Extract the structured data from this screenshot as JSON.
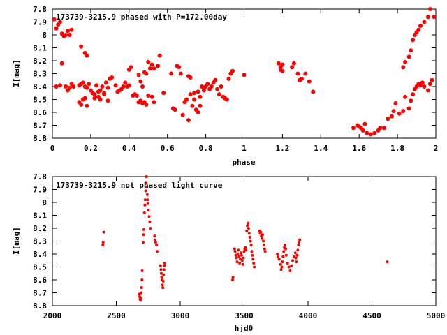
{
  "chart_data": [
    {
      "type": "scatter",
      "title": "173739-3215.9 phased with P=172.00day",
      "xlabel": "phase",
      "ylabel": "I[mag]",
      "xlim": [
        0,
        2
      ],
      "ylim": [
        7.8,
        8.8
      ],
      "y_inverted": true,
      "xticks": [
        "0",
        "0.2",
        "0.4",
        "0.6",
        "0.8",
        "1",
        "1.2",
        "1.4",
        "1.6",
        "1.8",
        "2"
      ],
      "yticks": [
        "7.8",
        "7.9",
        "8",
        "8.1",
        "8.2",
        "8.3",
        "8.4",
        "8.5",
        "8.6",
        "8.7",
        "8.8"
      ],
      "marker_color": "#ff0000",
      "grid": false,
      "points": [
        [
          0.01,
          7.88
        ],
        [
          0.02,
          7.95
        ],
        [
          0.03,
          7.92
        ],
        [
          0.04,
          7.9
        ],
        [
          0.05,
          7.99
        ],
        [
          0.06,
          8.01
        ],
        [
          0.07,
          8.0
        ],
        [
          0.08,
          7.97
        ],
        [
          0.09,
          8.0
        ],
        [
          0.1,
          7.96
        ],
        [
          0.02,
          8.4
        ],
        [
          0.04,
          8.39
        ],
        [
          0.05,
          8.22
        ],
        [
          0.07,
          8.4
        ],
        [
          0.08,
          8.43
        ],
        [
          0.09,
          8.41
        ],
        [
          0.1,
          8.38
        ],
        [
          0.11,
          8.4
        ],
        [
          0.14,
          8.39
        ],
        [
          0.15,
          8.38
        ],
        [
          0.16,
          8.37
        ],
        [
          0.17,
          8.4
        ],
        [
          0.18,
          8.41
        ],
        [
          0.19,
          8.38
        ],
        [
          0.15,
          8.09
        ],
        [
          0.17,
          8.14
        ],
        [
          0.18,
          8.16
        ],
        [
          0.14,
          8.52
        ],
        [
          0.15,
          8.54
        ],
        [
          0.16,
          8.5
        ],
        [
          0.17,
          8.49
        ],
        [
          0.18,
          8.55
        ],
        [
          0.2,
          8.43
        ],
        [
          0.21,
          8.45
        ],
        [
          0.22,
          8.46
        ],
        [
          0.23,
          8.39
        ],
        [
          0.24,
          8.44
        ],
        [
          0.25,
          8.43
        ],
        [
          0.26,
          8.4
        ],
        [
          0.27,
          8.45
        ],
        [
          0.28,
          8.37
        ],
        [
          0.29,
          8.41
        ],
        [
          0.3,
          8.34
        ],
        [
          0.31,
          8.33
        ],
        [
          0.22,
          8.49
        ],
        [
          0.24,
          8.48
        ],
        [
          0.25,
          8.5
        ],
        [
          0.27,
          8.46
        ],
        [
          0.29,
          8.51
        ],
        [
          0.33,
          8.39
        ],
        [
          0.34,
          8.44
        ],
        [
          0.35,
          8.43
        ],
        [
          0.36,
          8.42
        ],
        [
          0.37,
          8.4
        ],
        [
          0.38,
          8.37
        ],
        [
          0.39,
          8.4
        ],
        [
          0.4,
          8.39
        ],
        [
          0.4,
          8.27
        ],
        [
          0.41,
          8.25
        ],
        [
          0.42,
          8.47
        ],
        [
          0.43,
          8.46
        ],
        [
          0.44,
          8.47
        ],
        [
          0.45,
          8.31
        ],
        [
          0.46,
          8.36
        ],
        [
          0.47,
          8.4
        ],
        [
          0.48,
          8.29
        ],
        [
          0.49,
          8.3
        ],
        [
          0.5,
          8.21
        ],
        [
          0.51,
          8.26
        ],
        [
          0.52,
          8.23
        ],
        [
          0.53,
          8.26
        ],
        [
          0.55,
          8.24
        ],
        [
          0.56,
          8.16
        ],
        [
          0.45,
          8.52
        ],
        [
          0.46,
          8.51
        ],
        [
          0.47,
          8.53
        ],
        [
          0.48,
          8.52
        ],
        [
          0.49,
          8.54
        ],
        [
          0.5,
          8.47
        ],
        [
          0.52,
          8.48
        ],
        [
          0.53,
          8.52
        ],
        [
          0.58,
          8.45
        ],
        [
          0.62,
          8.3
        ],
        [
          0.63,
          8.57
        ],
        [
          0.64,
          8.58
        ],
        [
          0.65,
          8.24
        ],
        [
          0.66,
          8.25
        ],
        [
          0.67,
          8.3
        ],
        [
          0.68,
          8.62
        ],
        [
          0.69,
          8.52
        ],
        [
          0.7,
          8.5
        ],
        [
          0.71,
          8.66
        ],
        [
          0.71,
          8.32
        ],
        [
          0.72,
          8.33
        ],
        [
          0.73,
          8.55
        ],
        [
          0.74,
          8.5
        ],
        [
          0.75,
          8.58
        ],
        [
          0.76,
          8.6
        ],
        [
          0.77,
          8.55
        ],
        [
          0.78,
          8.4
        ],
        [
          0.79,
          8.43
        ],
        [
          0.8,
          8.4
        ],
        [
          0.81,
          8.38
        ],
        [
          0.72,
          8.46
        ],
        [
          0.74,
          8.45
        ],
        [
          0.76,
          8.44
        ],
        [
          0.77,
          8.48
        ],
        [
          0.79,
          8.41
        ],
        [
          0.82,
          8.42
        ],
        [
          0.83,
          8.4
        ],
        [
          0.84,
          8.37
        ],
        [
          0.85,
          8.35
        ],
        [
          0.86,
          8.42
        ],
        [
          0.87,
          8.46
        ],
        [
          0.88,
          8.4
        ],
        [
          0.89,
          8.48
        ],
        [
          0.9,
          8.49
        ],
        [
          0.91,
          8.5
        ],
        [
          0.92,
          8.34
        ],
        [
          0.93,
          8.3
        ],
        [
          0.94,
          8.28
        ],
        [
          1.0,
          8.31
        ],
        [
          1.18,
          8.22
        ],
        [
          1.19,
          8.25
        ],
        [
          1.19,
          8.27
        ],
        [
          1.2,
          8.23
        ],
        [
          1.2,
          8.28
        ],
        [
          1.25,
          8.25
        ],
        [
          1.26,
          8.22
        ],
        [
          1.28,
          8.3
        ],
        [
          1.29,
          8.35
        ],
        [
          1.3,
          8.34
        ],
        [
          1.32,
          8.3
        ],
        [
          1.34,
          8.36
        ],
        [
          1.36,
          8.44
        ],
        [
          1.57,
          8.72
        ],
        [
          1.59,
          8.7
        ],
        [
          1.6,
          8.71
        ],
        [
          1.61,
          8.72
        ],
        [
          1.62,
          8.74
        ],
        [
          1.63,
          8.69
        ],
        [
          1.64,
          8.76
        ],
        [
          1.66,
          8.77
        ],
        [
          1.68,
          8.76
        ],
        [
          1.7,
          8.74
        ],
        [
          1.71,
          8.72
        ],
        [
          1.73,
          8.72
        ],
        [
          1.75,
          8.65
        ],
        [
          1.77,
          8.63
        ],
        [
          1.78,
          8.59
        ],
        [
          1.79,
          8.53
        ],
        [
          1.81,
          8.61
        ],
        [
          1.83,
          8.59
        ],
        [
          1.84,
          8.48
        ],
        [
          1.86,
          8.57
        ],
        [
          1.83,
          8.25
        ],
        [
          1.84,
          8.21
        ],
        [
          1.86,
          8.17
        ],
        [
          1.87,
          8.12
        ],
        [
          1.88,
          8.04
        ],
        [
          1.89,
          8.0
        ],
        [
          1.9,
          7.98
        ],
        [
          1.91,
          7.96
        ],
        [
          1.92,
          7.93
        ],
        [
          1.94,
          7.9
        ],
        [
          1.96,
          7.86
        ],
        [
          1.97,
          7.8
        ],
        [
          1.99,
          7.86
        ],
        [
          1.87,
          8.51
        ],
        [
          1.88,
          8.46
        ],
        [
          1.89,
          8.42
        ],
        [
          1.9,
          8.4
        ],
        [
          1.91,
          8.38
        ],
        [
          1.92,
          8.39
        ],
        [
          1.93,
          8.37
        ],
        [
          1.94,
          8.4
        ],
        [
          1.96,
          8.43
        ],
        [
          1.97,
          8.38
        ],
        [
          1.98,
          8.35
        ]
      ]
    },
    {
      "type": "scatter",
      "title": "173739-3215.9 not phased light curve",
      "xlabel": "hjd0",
      "ylabel": "I[mag]",
      "xlim": [
        2000,
        5000
      ],
      "ylim": [
        7.8,
        8.8
      ],
      "y_inverted": true,
      "xticks": [
        "2000",
        "2500",
        "3000",
        "3500",
        "4000",
        "4500",
        "5000"
      ],
      "yticks": [
        "7.8",
        "7.9",
        "8",
        "8.1",
        "8.2",
        "8.3",
        "8.4",
        "8.5",
        "8.6",
        "8.7",
        "8.8"
      ],
      "marker_color": "#ff0000",
      "grid": false,
      "points": [
        [
          2395,
          8.33
        ],
        [
          2397,
          8.31
        ],
        [
          2402,
          8.23
        ],
        [
          2680,
          8.71
        ],
        [
          2683,
          8.73
        ],
        [
          2686,
          8.75
        ],
        [
          2689,
          8.76
        ],
        [
          2692,
          8.74
        ],
        [
          2695,
          8.7
        ],
        [
          2698,
          8.66
        ],
        [
          2701,
          8.6
        ],
        [
          2703,
          8.53
        ],
        [
          2710,
          8.31
        ],
        [
          2713,
          8.25
        ],
        [
          2716,
          8.21
        ],
        [
          2720,
          8.08
        ],
        [
          2724,
          8.02
        ],
        [
          2727,
          7.98
        ],
        [
          2730,
          7.91
        ],
        [
          2733,
          7.85
        ],
        [
          2736,
          7.8
        ],
        [
          2739,
          7.88
        ],
        [
          2742,
          7.94
        ],
        [
          2745,
          7.98
        ],
        [
          2748,
          8.01
        ],
        [
          2752,
          8.06
        ],
        [
          2757,
          8.11
        ],
        [
          2762,
          8.15
        ],
        [
          2767,
          8.2
        ],
        [
          2800,
          8.26
        ],
        [
          2803,
          8.29
        ],
        [
          2808,
          8.31
        ],
        [
          2815,
          8.33
        ],
        [
          2820,
          8.38
        ],
        [
          2846,
          8.49
        ],
        [
          2849,
          8.52
        ],
        [
          2852,
          8.55
        ],
        [
          2855,
          8.58
        ],
        [
          2858,
          8.6
        ],
        [
          2861,
          8.64
        ],
        [
          2864,
          8.66
        ],
        [
          2867,
          8.61
        ],
        [
          2870,
          8.56
        ],
        [
          2873,
          8.52
        ],
        [
          2876,
          8.49
        ],
        [
          2879,
          8.47
        ],
        [
          3410,
          8.6
        ],
        [
          3413,
          8.58
        ],
        [
          3425,
          8.36
        ],
        [
          3430,
          8.38
        ],
        [
          3435,
          8.41
        ],
        [
          3440,
          8.43
        ],
        [
          3445,
          8.46
        ],
        [
          3450,
          8.4
        ],
        [
          3455,
          8.37
        ],
        [
          3460,
          8.42
        ],
        [
          3465,
          8.47
        ],
        [
          3470,
          8.44
        ],
        [
          3475,
          8.39
        ],
        [
          3480,
          8.41
        ],
        [
          3485,
          8.45
        ],
        [
          3490,
          8.48
        ],
        [
          3495,
          8.43
        ],
        [
          3500,
          8.38
        ],
        [
          3505,
          8.36
        ],
        [
          3510,
          8.35
        ],
        [
          3515,
          8.37
        ],
        [
          3520,
          8.22
        ],
        [
          3525,
          8.18
        ],
        [
          3530,
          8.16
        ],
        [
          3535,
          8.2
        ],
        [
          3540,
          8.24
        ],
        [
          3545,
          8.27
        ],
        [
          3550,
          8.3
        ],
        [
          3555,
          8.33
        ],
        [
          3560,
          8.38
        ],
        [
          3565,
          8.41
        ],
        [
          3570,
          8.44
        ],
        [
          3575,
          8.47
        ],
        [
          3580,
          8.5
        ],
        [
          3620,
          8.22
        ],
        [
          3625,
          8.24
        ],
        [
          3630,
          8.23
        ],
        [
          3635,
          8.26
        ],
        [
          3640,
          8.28
        ],
        [
          3645,
          8.25
        ],
        [
          3650,
          8.3
        ],
        [
          3655,
          8.33
        ],
        [
          3660,
          8.36
        ],
        [
          3665,
          8.38
        ],
        [
          3760,
          8.4
        ],
        [
          3765,
          8.42
        ],
        [
          3775,
          8.44
        ],
        [
          3785,
          8.48
        ],
        [
          3790,
          8.52
        ],
        [
          3795,
          8.5
        ],
        [
          3800,
          8.46
        ],
        [
          3805,
          8.42
        ],
        [
          3810,
          8.38
        ],
        [
          3815,
          8.35
        ],
        [
          3820,
          8.33
        ],
        [
          3825,
          8.36
        ],
        [
          3830,
          8.41
        ],
        [
          3840,
          8.47
        ],
        [
          3850,
          8.5
        ],
        [
          3860,
          8.53
        ],
        [
          3870,
          8.49
        ],
        [
          3880,
          8.45
        ],
        [
          3890,
          8.42
        ],
        [
          3900,
          8.39
        ],
        [
          3905,
          8.43
        ],
        [
          3910,
          8.46
        ],
        [
          3915,
          8.41
        ],
        [
          3920,
          8.37
        ],
        [
          3925,
          8.33
        ],
        [
          3930,
          8.31
        ],
        [
          3935,
          8.29
        ],
        [
          4620,
          8.46
        ]
      ]
    }
  ]
}
